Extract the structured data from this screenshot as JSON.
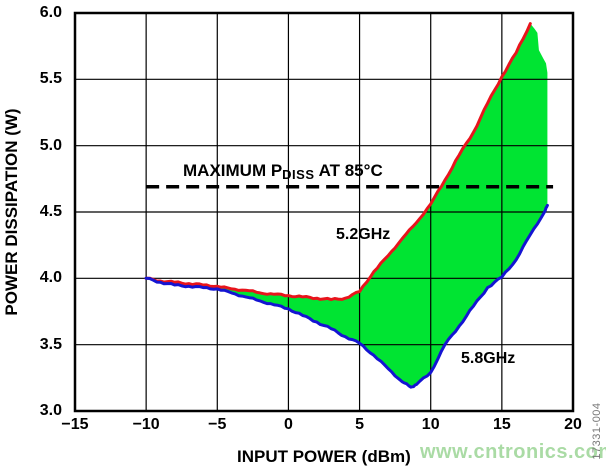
{
  "figure_code": "17331-004",
  "watermark": "www.cntronics.com",
  "annotation": {
    "prefix": "MAXIMUM P",
    "sub": "DISS",
    "suffix": " AT 85°C"
  },
  "chart_data": {
    "type": "line",
    "title": "",
    "xlabel": "INPUT POWER (dBm)",
    "ylabel": "POWER DISSIPATION (W)",
    "xlim": [
      -15,
      20
    ],
    "ylim": [
      3.0,
      6.0
    ],
    "x_ticks": [
      -15,
      -10,
      -5,
      0,
      5,
      10,
      15,
      20
    ],
    "x_tick_labels": [
      "−15",
      "−10",
      "−5",
      "0",
      "5",
      "10",
      "15",
      "20"
    ],
    "y_ticks": [
      6.0,
      5.5,
      5.0,
      4.5,
      4.0,
      3.5,
      3.0
    ],
    "y_tick_labels": [
      "6.0",
      "5.5",
      "5.0",
      "4.5",
      "4.0",
      "3.5",
      "3.0"
    ],
    "grid": true,
    "legend": "inline-labels",
    "series": [
      {
        "name": "5.2GHz",
        "color": "#e8141c",
        "points": [
          [
            -10,
            4.0
          ],
          [
            -9,
            3.98
          ],
          [
            -8,
            3.97
          ],
          [
            -7,
            3.96
          ],
          [
            -6,
            3.95
          ],
          [
            -5,
            3.94
          ],
          [
            -4,
            3.92
          ],
          [
            -3,
            3.91
          ],
          [
            -2,
            3.89
          ],
          [
            -1,
            3.88
          ],
          [
            0,
            3.87
          ],
          [
            1,
            3.86
          ],
          [
            2,
            3.85
          ],
          [
            3,
            3.84
          ],
          [
            4,
            3.85
          ],
          [
            5,
            3.9
          ],
          [
            6,
            4.05
          ],
          [
            7,
            4.17
          ],
          [
            8,
            4.3
          ],
          [
            9,
            4.42
          ],
          [
            10,
            4.56
          ],
          [
            11,
            4.74
          ],
          [
            12,
            4.93
          ],
          [
            13,
            5.1
          ],
          [
            14,
            5.32
          ],
          [
            15,
            5.52
          ],
          [
            16,
            5.7
          ],
          [
            17,
            5.92
          ]
        ]
      },
      {
        "name": "5.8GHz",
        "color": "#1414d2",
        "points": [
          [
            -10,
            4.0
          ],
          [
            -9,
            3.97
          ],
          [
            -8,
            3.95
          ],
          [
            -7,
            3.94
          ],
          [
            -6,
            3.93
          ],
          [
            -5,
            3.92
          ],
          [
            -4,
            3.89
          ],
          [
            -3,
            3.86
          ],
          [
            -2,
            3.83
          ],
          [
            -1,
            3.8
          ],
          [
            0,
            3.77
          ],
          [
            1,
            3.72
          ],
          [
            2,
            3.67
          ],
          [
            3,
            3.62
          ],
          [
            4,
            3.56
          ],
          [
            5,
            3.51
          ],
          [
            6,
            3.42
          ],
          [
            7,
            3.32
          ],
          [
            8,
            3.22
          ],
          [
            8.6,
            3.18
          ],
          [
            9,
            3.2
          ],
          [
            10,
            3.29
          ],
          [
            11,
            3.5
          ],
          [
            12,
            3.64
          ],
          [
            13,
            3.79
          ],
          [
            14,
            3.93
          ],
          [
            15,
            4.01
          ],
          [
            16,
            4.14
          ],
          [
            17,
            4.33
          ],
          [
            18,
            4.5
          ],
          [
            18.2,
            4.55
          ]
        ]
      }
    ],
    "band_fill": {
      "description": "green region between 5.2GHz and 5.8GHz curves",
      "color": "#00e432",
      "upper_extension": [
        [
          17.3,
          5.88
        ],
        [
          17.5,
          5.85
        ],
        [
          17.6,
          5.72
        ],
        [
          17.9,
          5.66
        ],
        [
          18.1,
          5.62
        ],
        [
          18.2,
          5.55
        ]
      ]
    },
    "reference_line": {
      "label": "MAXIMUM PDISS AT 85°C",
      "y": 4.69,
      "x_start": -10,
      "x_end": 18.6,
      "style": "dashed",
      "color": "#000000"
    }
  }
}
